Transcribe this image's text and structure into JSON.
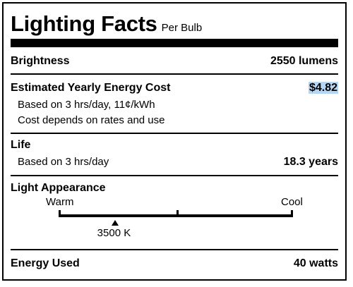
{
  "header": {
    "title": "Lighting Facts",
    "subtitle": "Per Bulb"
  },
  "brightness": {
    "label": "Brightness",
    "value": "2550 lumens"
  },
  "energy_cost": {
    "label": "Estimated Yearly Energy Cost",
    "value": "$4.82",
    "note_1": "Based on 3 hrs/day, 11¢/kWh",
    "note_2": "Cost depends on rates and use",
    "highlight_color": "#b4d6f5"
  },
  "life": {
    "label": "Life",
    "note": "Based on 3 hrs/day",
    "value": "18.3 years"
  },
  "light_appearance": {
    "label": "Light Appearance",
    "warm_label": "Warm",
    "cool_label": "Cool",
    "value": "3500 K",
    "position_fraction": 0.24
  },
  "energy_used": {
    "label": "Energy Used",
    "value": "40 watts"
  }
}
